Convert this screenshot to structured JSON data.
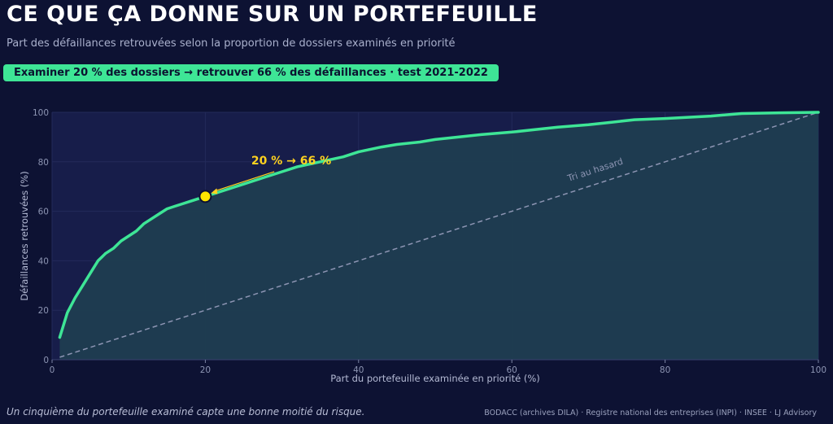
{
  "header": {
    "title": "CE QUE ÇA DONNE SUR UN PORTEFEUILLE",
    "subtitle": "Part des défaillances retrouvées selon la proportion de dossiers examinés en priorité",
    "badge": "Examiner 20 % des dossiers → retrouver 66 % des défaillances  ·  test 2021-2022"
  },
  "colors": {
    "background": "#0d1233",
    "curve": "#3ee596",
    "marker": "#ffe600",
    "annotation": "#ffd21f",
    "diagonal": "#8d95b3"
  },
  "chart_data": {
    "type": "line",
    "xlabel": "Part du portefeuille examinée en priorité (%)",
    "ylabel": "Défaillances retrouvées (%)",
    "xlim": [
      0,
      100
    ],
    "ylim": [
      0,
      100
    ],
    "xticks": [
      0,
      20,
      40,
      60,
      80,
      100
    ],
    "yticks": [
      0,
      20,
      40,
      60,
      80,
      100
    ],
    "grid": true,
    "series": [
      {
        "x": [
          1,
          2,
          3,
          4,
          5,
          6,
          7,
          8,
          9,
          10,
          11,
          12,
          13,
          14,
          15,
          16,
          17,
          18,
          19,
          20,
          22,
          25,
          28,
          30,
          32,
          35,
          38,
          40,
          43,
          45,
          48,
          50,
          53,
          56,
          60,
          63,
          66,
          70,
          73,
          76,
          80,
          83,
          86,
          90,
          95,
          100
        ],
        "y": [
          9,
          19,
          25,
          30,
          35,
          40,
          43,
          45,
          48,
          50,
          52,
          55,
          57,
          59,
          61,
          62,
          63,
          64,
          65,
          66,
          68,
          71,
          74,
          76,
          78,
          80,
          82,
          84,
          86,
          87,
          88,
          89,
          90,
          91,
          92,
          93,
          94,
          95,
          96,
          97,
          97.5,
          98,
          98.5,
          99.5,
          99.8,
          100
        ]
      }
    ],
    "baseline": {
      "label": "Tri au hasard",
      "x": [
        1,
        100
      ],
      "y": [
        1,
        100
      ]
    },
    "highlight": {
      "x": 20,
      "y": 66,
      "label": "20 %  →  66 %"
    }
  },
  "footer": {
    "note": "Un cinquième du portefeuille examiné capte une bonne moitié du risque.",
    "source": "BODACC (archives DILA) · Registre national des entreprises (INPI) · INSEE  ·  LJ Advisory"
  }
}
